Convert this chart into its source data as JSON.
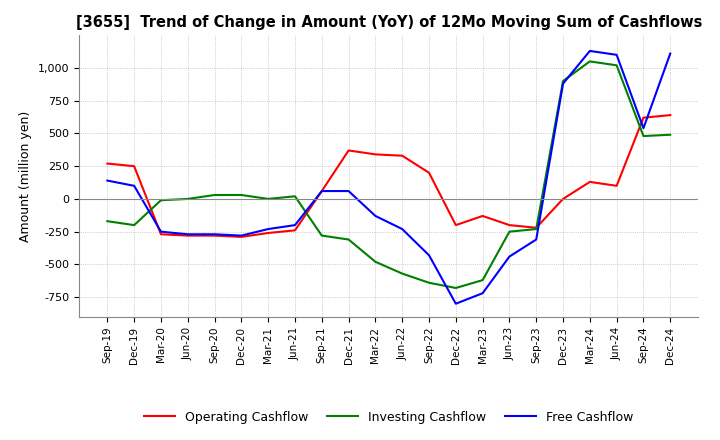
{
  "title": "[3655]  Trend of Change in Amount (YoY) of 12Mo Moving Sum of Cashflows",
  "ylabel": "Amount (million yen)",
  "ylim": [
    -900,
    1250
  ],
  "yticks": [
    -750,
    -500,
    -250,
    0,
    250,
    500,
    750,
    1000
  ],
  "x_labels": [
    "Sep-19",
    "Dec-19",
    "Mar-20",
    "Jun-20",
    "Sep-20",
    "Dec-20",
    "Mar-21",
    "Jun-21",
    "Sep-21",
    "Dec-21",
    "Mar-22",
    "Jun-22",
    "Sep-22",
    "Dec-22",
    "Mar-23",
    "Jun-23",
    "Sep-23",
    "Dec-23",
    "Mar-24",
    "Jun-24",
    "Sep-24",
    "Dec-24"
  ],
  "operating": [
    270,
    250,
    -270,
    -280,
    -280,
    -290,
    -260,
    -240,
    60,
    370,
    340,
    330,
    200,
    -200,
    -130,
    -200,
    -220,
    0,
    130,
    100,
    620,
    640
  ],
  "investing": [
    -170,
    -200,
    -10,
    0,
    30,
    30,
    0,
    20,
    -280,
    -310,
    -480,
    -570,
    -640,
    -680,
    -620,
    -250,
    -230,
    900,
    1050,
    1020,
    480,
    490
  ],
  "free": [
    140,
    100,
    -250,
    -270,
    -270,
    -280,
    -230,
    -200,
    60,
    60,
    -130,
    -230,
    -430,
    -800,
    -720,
    -440,
    -310,
    880,
    1130,
    1100,
    540,
    1110
  ],
  "op_color": "#ff0000",
  "inv_color": "#008000",
  "free_color": "#0000ff",
  "bg_color": "#ffffff",
  "grid_color": "#aaaaaa"
}
